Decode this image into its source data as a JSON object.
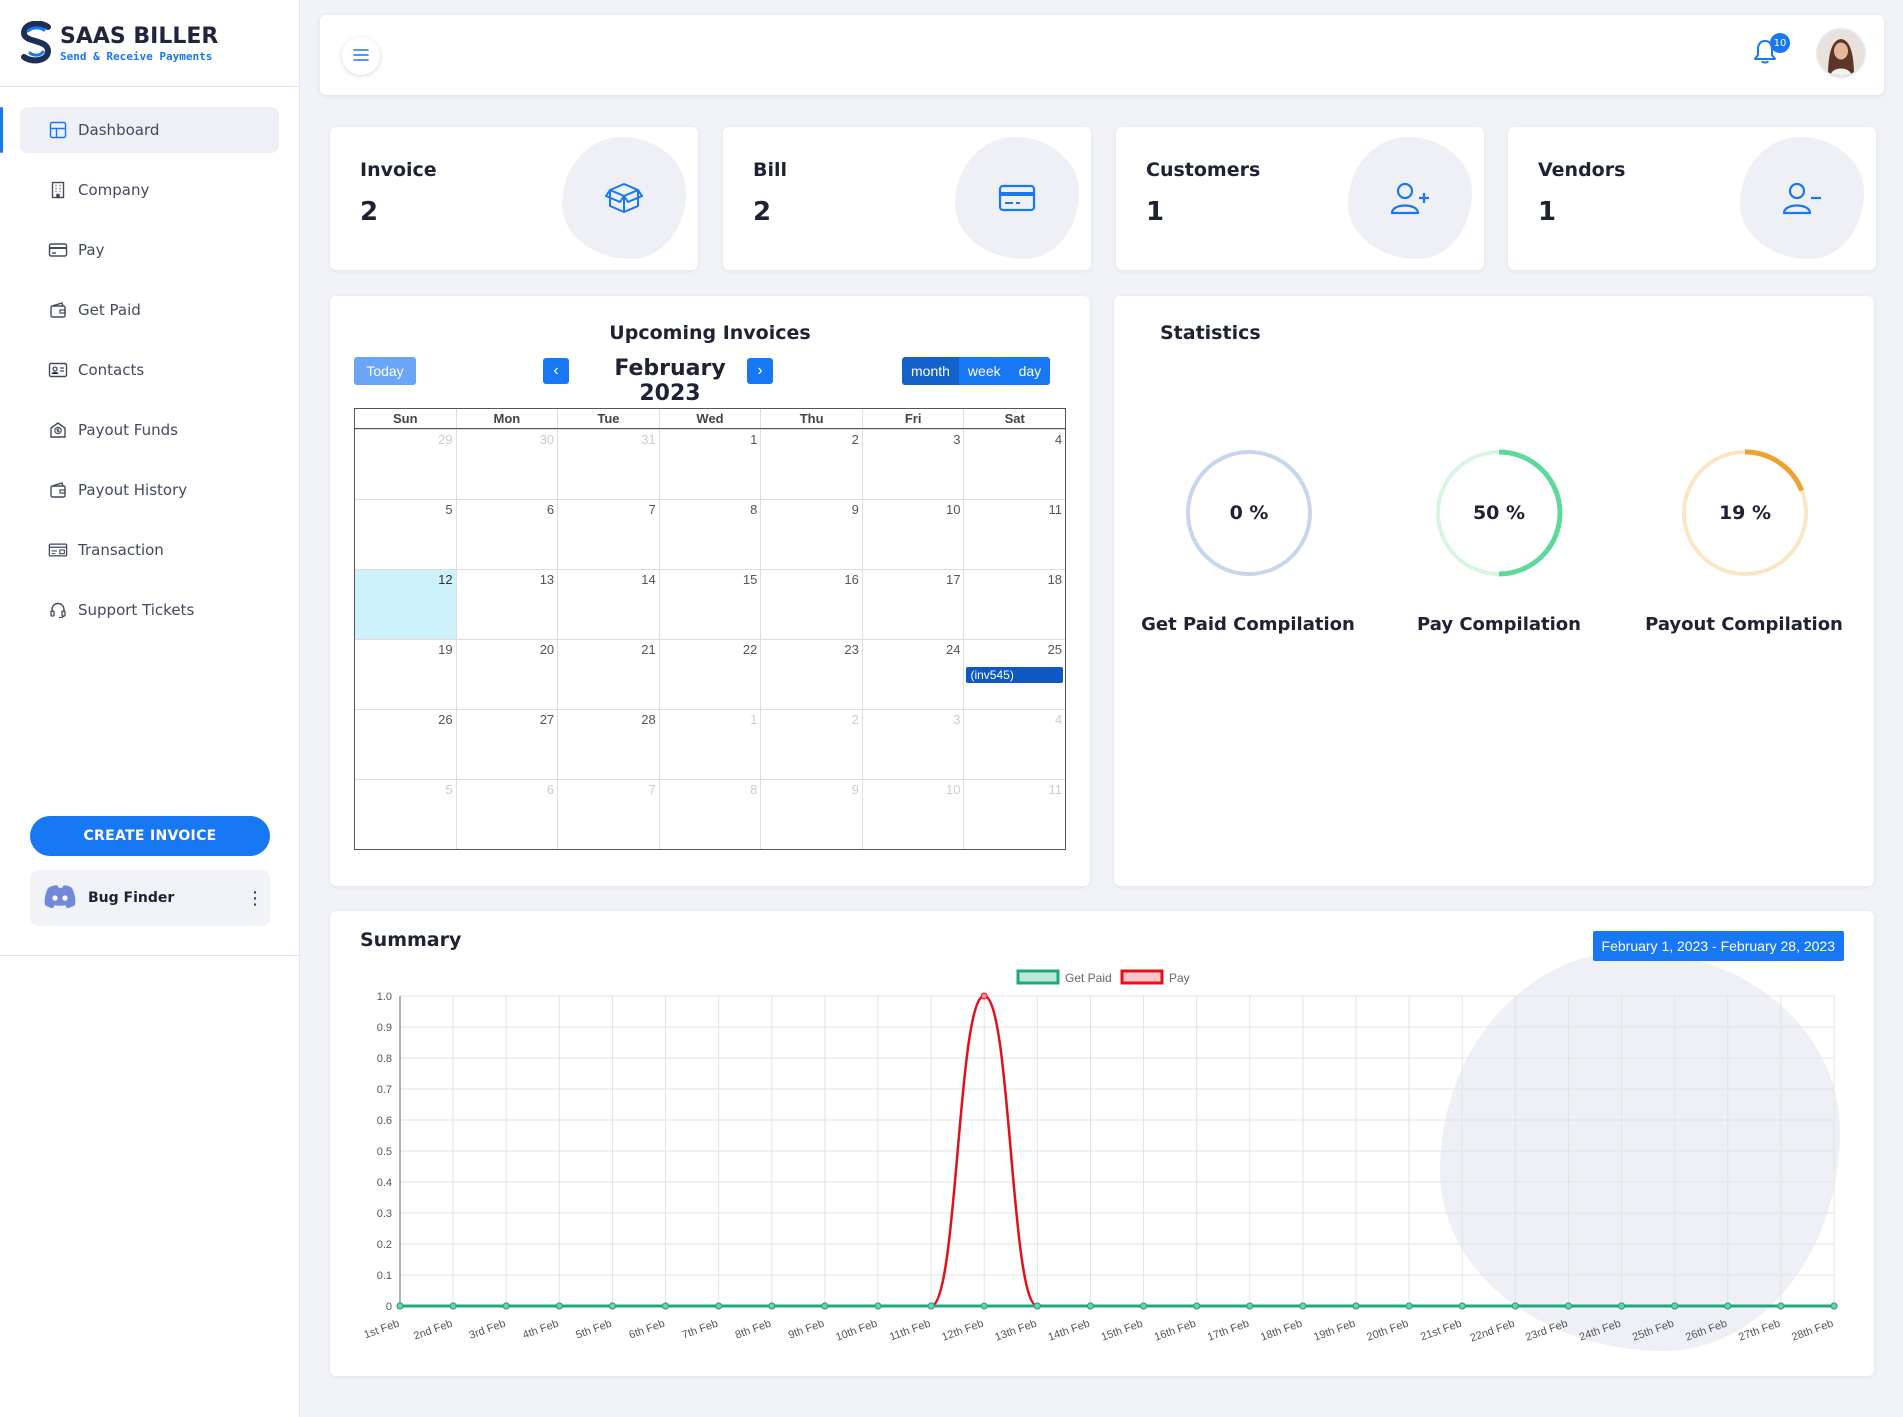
{
  "brand": {
    "name": "SAAS BILLER",
    "tagline": "Send & Receive Payments",
    "accent": "#1877f2"
  },
  "sidebar": {
    "items": [
      {
        "label": "Dashboard",
        "icon": "grid-icon",
        "active": true
      },
      {
        "label": "Company",
        "icon": "building-icon"
      },
      {
        "label": "Pay",
        "icon": "credit-card-icon"
      },
      {
        "label": "Get Paid",
        "icon": "wallet-icon"
      },
      {
        "label": "Contacts",
        "icon": "contact-card-icon"
      },
      {
        "label": "Payout Funds",
        "icon": "money-envelope-icon"
      },
      {
        "label": "Payout History",
        "icon": "wallet-icon"
      },
      {
        "label": "Transaction",
        "icon": "transaction-icon"
      },
      {
        "label": "Support Tickets",
        "icon": "headset-icon"
      }
    ],
    "create_label": "CREATE INVOICE",
    "org_name": "Bug Finder"
  },
  "topbar": {
    "notifications": "10"
  },
  "stats": [
    {
      "label": "Invoice",
      "value": "2",
      "icon": "box-icon"
    },
    {
      "label": "Bill",
      "value": "2",
      "icon": "credit-card-icon"
    },
    {
      "label": "Customers",
      "value": "1",
      "icon": "user-plus-icon"
    },
    {
      "label": "Vendors",
      "value": "1",
      "icon": "user-minus-icon"
    }
  ],
  "calendar": {
    "title": "Upcoming Invoices",
    "today_label": "Today",
    "month_label": "February 2023",
    "views": [
      "month",
      "week",
      "day"
    ],
    "active_view": "month",
    "weekdays": [
      "Sun",
      "Mon",
      "Tue",
      "Wed",
      "Thu",
      "Fri",
      "Sat"
    ],
    "weeks": [
      [
        [
          "29",
          true
        ],
        [
          "30",
          true
        ],
        [
          "31",
          true
        ],
        [
          "1",
          false
        ],
        [
          "2",
          false
        ],
        [
          "3",
          false
        ],
        [
          "4",
          false
        ]
      ],
      [
        [
          "5",
          false
        ],
        [
          "6",
          false
        ],
        [
          "7",
          false
        ],
        [
          "8",
          false
        ],
        [
          "9",
          false
        ],
        [
          "10",
          false
        ],
        [
          "11",
          false
        ]
      ],
      [
        [
          "12",
          false
        ],
        [
          "13",
          false
        ],
        [
          "14",
          false
        ],
        [
          "15",
          false
        ],
        [
          "16",
          false
        ],
        [
          "17",
          false
        ],
        [
          "18",
          false
        ]
      ],
      [
        [
          "19",
          false
        ],
        [
          "20",
          false
        ],
        [
          "21",
          false
        ],
        [
          "22",
          false
        ],
        [
          "23",
          false
        ],
        [
          "24",
          false
        ],
        [
          "25",
          false
        ]
      ],
      [
        [
          "26",
          false
        ],
        [
          "27",
          false
        ],
        [
          "28",
          false
        ],
        [
          "1",
          true
        ],
        [
          "2",
          true
        ],
        [
          "3",
          true
        ],
        [
          "4",
          true
        ]
      ],
      [
        [
          "5",
          true
        ],
        [
          "6",
          true
        ],
        [
          "7",
          true
        ],
        [
          "8",
          true
        ],
        [
          "9",
          true
        ],
        [
          "10",
          true
        ],
        [
          "11",
          true
        ]
      ]
    ],
    "today_day": "12",
    "event": {
      "day": "25",
      "label": "(inv545)"
    }
  },
  "statistics": {
    "title": "Statistics",
    "rings": [
      {
        "value": "0 %",
        "fraction": 0,
        "label": "Get Paid Compilation",
        "track": "#c7d5ef",
        "color": "#1877f2"
      },
      {
        "value": "50 %",
        "fraction": 0.5,
        "label": "Pay Compilation",
        "track": "#d7f5e3",
        "color": "#5ed99a"
      },
      {
        "value": "19 %",
        "fraction": 0.19,
        "label": "Payout Compilation",
        "track": "#f9e7c4",
        "color": "#f0a02d"
      }
    ]
  },
  "summary": {
    "title": "Summary",
    "date_range": "February 1, 2023 - February 28, 2023"
  },
  "chart_data": {
    "type": "line",
    "x": [
      "1st Feb",
      "2nd Feb",
      "3rd Feb",
      "4th Feb",
      "5th Feb",
      "6th Feb",
      "7th Feb",
      "8th Feb",
      "9th Feb",
      "10th Feb",
      "11th Feb",
      "12th Feb",
      "13th Feb",
      "14th Feb",
      "15th Feb",
      "16th Feb",
      "17th Feb",
      "18th Feb",
      "19th Feb",
      "20th Feb",
      "21st Feb",
      "22nd Feb",
      "23rd Feb",
      "24th Feb",
      "25th Feb",
      "26th Feb",
      "27th Feb",
      "28th Feb"
    ],
    "series": [
      {
        "name": "Get Paid",
        "color": "#20a77c",
        "values": [
          0,
          0,
          0,
          0,
          0,
          0,
          0,
          0,
          0,
          0,
          0,
          0,
          0,
          0,
          0,
          0,
          0,
          0,
          0,
          0,
          0,
          0,
          0,
          0,
          0,
          0,
          0,
          0
        ]
      },
      {
        "name": "Pay",
        "color": "#e3101a",
        "values": [
          0,
          0,
          0,
          0,
          0,
          0,
          0,
          0,
          0,
          0,
          0,
          1,
          0,
          0,
          0,
          0,
          0,
          0,
          0,
          0,
          0,
          0,
          0,
          0,
          0,
          0,
          0,
          0
        ]
      }
    ],
    "yticks": [
      "0",
      "0.1",
      "0.2",
      "0.3",
      "0.4",
      "0.5",
      "0.6",
      "0.7",
      "0.8",
      "0.9",
      "1.0"
    ],
    "ylim": [
      0,
      1
    ],
    "legend": "top-center",
    "grid": true
  }
}
